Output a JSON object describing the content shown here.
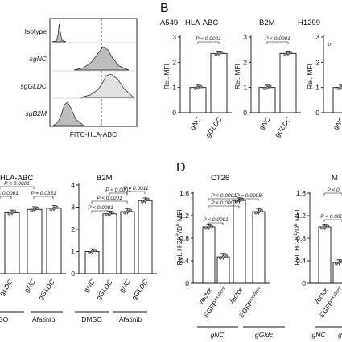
{
  "panels": {
    "B": "B",
    "D": "D"
  },
  "histogram": {
    "rows": [
      "Isotype",
      "sgNC",
      "sgGLDC",
      "sgB2M"
    ],
    "xlabel": "FITC-HLA-ABC"
  },
  "labels": {
    "a549": "A549",
    "h1299": "H1299",
    "hla_abc": "HLA-ABC",
    "b2m": "B2M",
    "ct26": "CT26",
    "m_partial": "M",
    "dmso": "DMSO",
    "dmso_partial": "SO",
    "afatinib": "Afatinib",
    "gnc": "gNC",
    "ggldc": "gGLDC",
    "ggldc_partial": "gLDC",
    "ggldc_lower": "gGldc",
    "g_partial": "g",
    "vector": "Vector",
    "egfr": "EGFR",
    "egfr_sup": "ex19del",
    "rel_mfi": "Rel. MFI",
    "rel_h2k": "Rel. H-2K",
    "h2k_sup": "b",
    "h2k_d": "/D",
    "h2k_mfi": " MFI"
  },
  "chart_data": [
    {
      "type": "bar",
      "title": "HLA-ABC",
      "series_label": "A549",
      "categories": [
        "gNC",
        "gGLDC"
      ],
      "values": [
        1.0,
        2.35
      ],
      "ylabel": "Rel. MFI",
      "ylim": [
        0,
        3
      ],
      "yticks": [
        0,
        1,
        2,
        3
      ],
      "pvalues": [
        "P < 0.0001"
      ]
    },
    {
      "type": "bar",
      "title": "B2M",
      "categories": [
        "gNC",
        "gGLDC"
      ],
      "values": [
        1.0,
        2.35
      ],
      "ylim": [
        0,
        3
      ],
      "yticks": [
        0,
        1,
        2,
        3
      ],
      "pvalues": [
        "P < 0.0001"
      ]
    },
    {
      "type": "bar",
      "title": "H1299",
      "categories": [
        "gNC"
      ],
      "values": [
        1.0
      ],
      "ylabel": "Rel. MFI",
      "ylim": [
        0,
        3
      ],
      "yticks": [
        0,
        1,
        2,
        3
      ],
      "pvalues": [
        "P"
      ]
    },
    {
      "type": "bar",
      "title": "HLA-ABC",
      "categories": [
        "gGLDC",
        "gNC",
        "gGLDC"
      ],
      "groups": [
        "DMSO",
        "Afatinib"
      ],
      "values": [
        2.75,
        2.9,
        2.95
      ],
      "pvalues": [
        "P < 0.0001",
        "P < 0.0001",
        "P = 0.0351"
      ]
    },
    {
      "type": "bar",
      "title": "B2M",
      "categories": [
        "gNC",
        "gGLDC",
        "gNC",
        "gGLDC"
      ],
      "groups": [
        "DMSO",
        "Afatinib"
      ],
      "values": [
        1.0,
        2.7,
        2.8,
        3.3
      ],
      "ylim": [
        0,
        4
      ],
      "yticks": [
        0,
        1,
        2,
        3,
        4
      ],
      "pvalues": [
        "P < 0.0001",
        "P < 0.0001",
        "P < 0.0001",
        "P = 0.0011"
      ]
    },
    {
      "type": "bar",
      "title": "CT26",
      "categories": [
        "Vector",
        "EGFRex19del",
        "Vector",
        "EGFRex19del"
      ],
      "groups": [
        "gNC",
        "gGldc"
      ],
      "values": [
        1.0,
        0.47,
        1.47,
        1.27
      ],
      "ylabel": "Rel. H-2Kb/Db MFI",
      "ylim": [
        0,
        1.6
      ],
      "yticks": [
        0,
        0.4,
        0.8,
        1.2,
        1.6
      ],
      "pvalues": [
        "P < 0.0001",
        "P < 0.0001",
        "P < 0.0001",
        "P = 0.0008"
      ]
    },
    {
      "type": "bar",
      "title": "M",
      "categories": [
        "Vector",
        "EGFRex19del"
      ],
      "groups": [
        "gNC"
      ],
      "values": [
        1.0,
        0.37
      ],
      "ylabel": "Rel. H-2Kb/Db MFI",
      "ylim": [
        0,
        1.6
      ],
      "yticks": [
        0,
        0.4,
        0.8,
        1.2,
        1.6
      ],
      "pvalues": [
        "P < 0.0001",
        "P < 0"
      ]
    }
  ]
}
